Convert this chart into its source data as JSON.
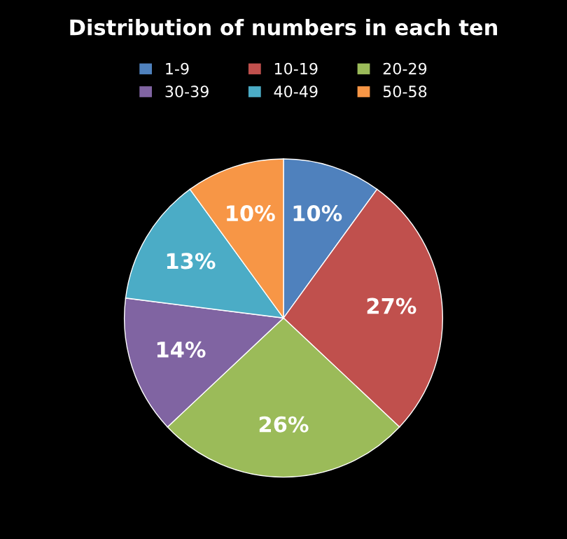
{
  "chart_data": {
    "type": "pie",
    "title": "Distribution of numbers in each ten",
    "categories": [
      "1-9",
      "10-19",
      "20-29",
      "30-39",
      "40-49",
      "50-58"
    ],
    "values": [
      10,
      27,
      26,
      14,
      13,
      10
    ],
    "colors": [
      "#4f81bd",
      "#c0504d",
      "#9bbb59",
      "#8064a2",
      "#4bacc6",
      "#f79646"
    ],
    "value_labels": [
      "10%",
      "27%",
      "26%",
      "14%",
      "13%",
      "10%"
    ],
    "legend": "top"
  }
}
